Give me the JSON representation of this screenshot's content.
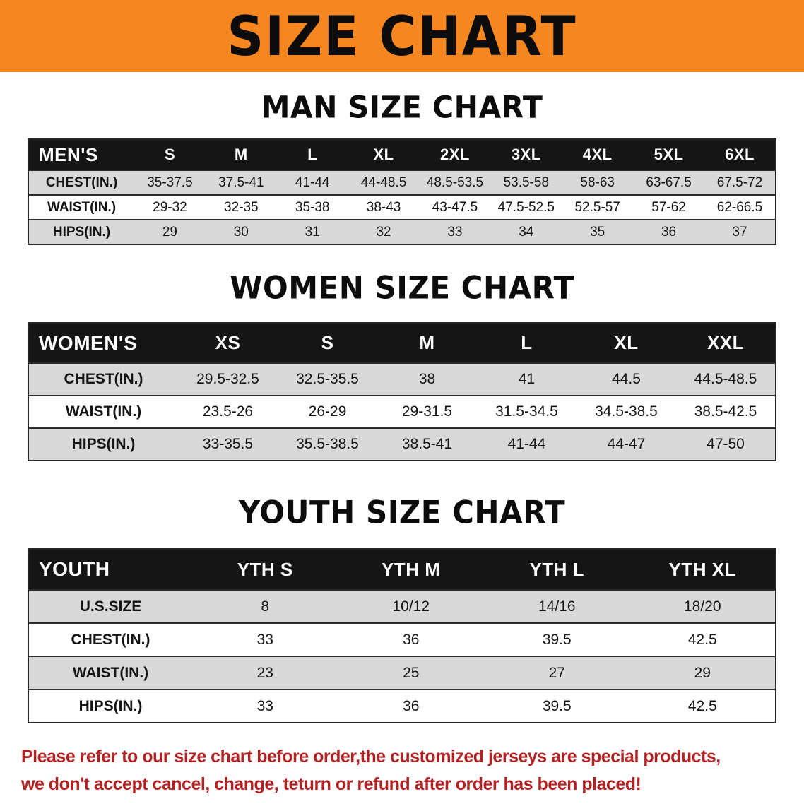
{
  "banner": {
    "title": "SIZE CHART"
  },
  "sections": [
    {
      "id": "men",
      "title": "MAN SIZE CHART",
      "corner_label": "MEN'S",
      "columns": [
        "S",
        "M",
        "L",
        "XL",
        "2XL",
        "3XL",
        "4XL",
        "5XL",
        "6XL"
      ],
      "rows": [
        {
          "label": "CHEST(IN.)",
          "values": [
            "35-37.5",
            "37.5-41",
            "41-44",
            "44-48.5",
            "48.5-53.5",
            "53.5-58",
            "58-63",
            "63-67.5",
            "67.5-72"
          ]
        },
        {
          "label": "WAIST(IN.)",
          "values": [
            "29-32",
            "32-35",
            "35-38",
            "38-43",
            "43-47.5",
            "47.5-52.5",
            "52.5-57",
            "57-62",
            "62-66.5"
          ]
        },
        {
          "label": "HIPS(IN.)",
          "values": [
            "29",
            "30",
            "31",
            "32",
            "33",
            "34",
            "35",
            "36",
            "37"
          ]
        }
      ]
    },
    {
      "id": "women",
      "title": "WOMEN SIZE CHART",
      "corner_label": "WOMEN'S",
      "columns": [
        "XS",
        "S",
        "M",
        "L",
        "XL",
        "XXL"
      ],
      "rows": [
        {
          "label": "CHEST(IN.)",
          "values": [
            "29.5-32.5",
            "32.5-35.5",
            "38",
            "41",
            "44.5",
            "44.5-48.5"
          ]
        },
        {
          "label": "WAIST(IN.)",
          "values": [
            "23.5-26",
            "26-29",
            "29-31.5",
            "31.5-34.5",
            "34.5-38.5",
            "38.5-42.5"
          ]
        },
        {
          "label": "HIPS(IN.)",
          "values": [
            "33-35.5",
            "35.5-38.5",
            "38.5-41",
            "41-44",
            "44-47",
            "47-50"
          ]
        }
      ]
    },
    {
      "id": "youth",
      "title": "YOUTH SIZE CHART",
      "corner_label": "YOUTH",
      "columns": [
        "YTH S",
        "YTH M",
        "YTH L",
        "YTH XL"
      ],
      "rows": [
        {
          "label": "U.S.SIZE",
          "values": [
            "8",
            "10/12",
            "14/16",
            "18/20"
          ]
        },
        {
          "label": "CHEST(IN.)",
          "values": [
            "33",
            "36",
            "39.5",
            "42.5"
          ]
        },
        {
          "label": "WAIST(IN.)",
          "values": [
            "23",
            "25",
            "27",
            "29"
          ]
        },
        {
          "label": "HIPS(IN.)",
          "values": [
            "33",
            "36",
            "39.5",
            "42.5"
          ]
        }
      ]
    }
  ],
  "footer": {
    "line1": "Please refer to our size chart before order,the customized jerseys are special products,",
    "line2": "we don't accept cancel, change, teturn or refund after order has been placed!"
  },
  "colors": {
    "banner_orange": "#F6861F",
    "table_header_black": "#151515",
    "stripe_gray": "#d9d9d9",
    "notice_red": "#b22222"
  }
}
